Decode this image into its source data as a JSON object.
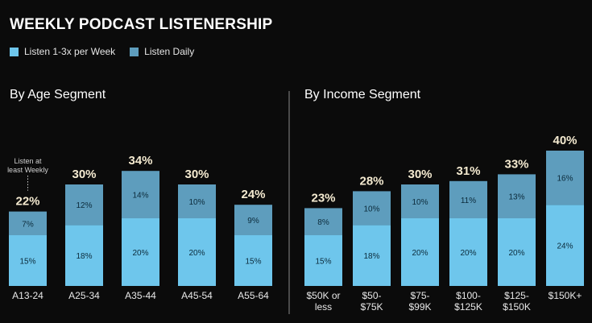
{
  "title": "WEEKLY PODCAST LISTENERSHIP",
  "legend": [
    {
      "label": "Listen 1-3x per Week",
      "color": "#6ec6ec"
    },
    {
      "label": "Listen Daily",
      "color": "#5e9dbd"
    }
  ],
  "colors": {
    "weekly": "#6ec6ec",
    "daily": "#5e9dbd",
    "background": "#0b0b0b",
    "divider": "#8a8a8a"
  },
  "annotation": "Listen at least Weekly",
  "chart_data": [
    {
      "type": "bar",
      "stacked": true,
      "title": "By Age Segment",
      "categories": [
        "A13-24",
        "A25-34",
        "A35-44",
        "A45-54",
        "A55-64"
      ],
      "series": [
        {
          "name": "Listen 1-3x per Week",
          "values": [
            15,
            18,
            20,
            20,
            15
          ]
        },
        {
          "name": "Listen Daily",
          "values": [
            7,
            12,
            14,
            10,
            9
          ]
        }
      ],
      "totals": [
        22,
        30,
        34,
        30,
        24
      ],
      "value_suffix": "%"
    },
    {
      "type": "bar",
      "stacked": true,
      "title": "By Income Segment",
      "categories": [
        [
          "$50K or",
          "less"
        ],
        [
          "$50-",
          "$75K"
        ],
        [
          "$75-",
          "$99K"
        ],
        [
          "$100-",
          "$125K"
        ],
        [
          "$125-",
          "$150K"
        ],
        [
          "$150K+"
        ]
      ],
      "series": [
        {
          "name": "Listen 1-3x per Week",
          "values": [
            15,
            18,
            20,
            20,
            20,
            24
          ]
        },
        {
          "name": "Listen Daily",
          "values": [
            8,
            10,
            10,
            11,
            13,
            16
          ]
        }
      ],
      "totals": [
        23,
        28,
        30,
        31,
        33,
        40
      ],
      "value_suffix": "%"
    }
  ]
}
